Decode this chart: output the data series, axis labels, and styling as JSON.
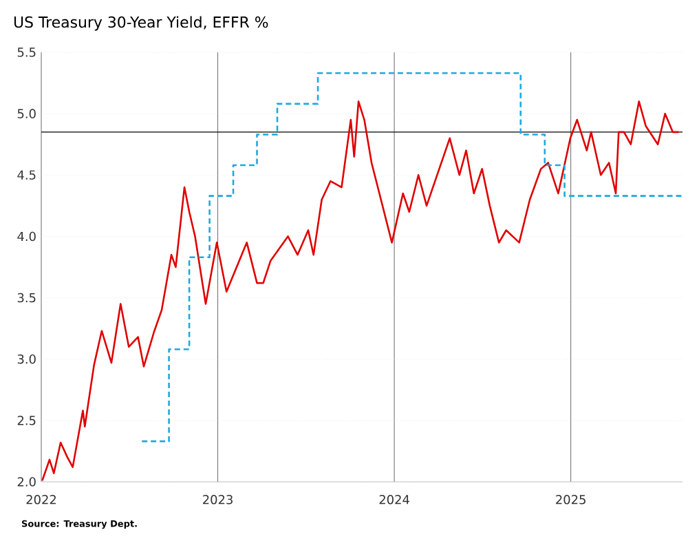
{
  "chart_data": {
    "type": "line",
    "title": "US Treasury 30-Year Yield, EFFR %",
    "annotations": [
      "Source: Treasury Dept."
    ],
    "xlim": [
      "2022-01-01",
      "2025-08-20"
    ],
    "xticks": [
      "2022",
      "2023",
      "2024",
      "2025"
    ],
    "ylim": [
      2.0,
      5.5
    ],
    "yticks": [
      {
        "value": 2.0,
        "label": "2.0"
      },
      {
        "value": 2.5,
        "label": "2.5"
      },
      {
        "value": 3.0,
        "label": "3.0"
      },
      {
        "value": 3.5,
        "label": "3.5"
      },
      {
        "value": 4.0,
        "label": "4.0"
      },
      {
        "value": 4.5,
        "label": "4.5"
      },
      {
        "value": 5.0,
        "label": "5.0"
      },
      {
        "value": 5.5,
        "label": "5.5"
      }
    ],
    "grid": true,
    "marker": "none",
    "ref_lines": [
      {
        "axis": "y",
        "value": 4.85,
        "color": "#000000"
      }
    ],
    "series": [
      {
        "color": "#e00000",
        "line_style": "solid",
        "x": [
          "2022-01-03",
          "2022-01-18",
          "2022-01-27",
          "2022-02-10",
          "2022-02-24",
          "2022-03-07",
          "2022-03-28",
          "2022-04-01",
          "2022-04-20",
          "2022-05-06",
          "2022-05-26",
          "2022-06-14",
          "2022-07-01",
          "2022-07-20",
          "2022-08-01",
          "2022-08-22",
          "2022-09-07",
          "2022-09-27",
          "2022-10-06",
          "2022-10-24",
          "2022-11-03",
          "2022-11-15",
          "2022-12-07",
          "2022-12-30",
          "2023-01-19",
          "2023-02-09",
          "2023-03-02",
          "2023-03-23",
          "2023-04-05",
          "2023-04-20",
          "2023-05-26",
          "2023-06-15",
          "2023-07-07",
          "2023-07-18",
          "2023-08-04",
          "2023-08-22",
          "2023-09-14",
          "2023-10-03",
          "2023-10-10",
          "2023-10-19",
          "2023-10-31",
          "2023-11-15",
          "2023-12-27",
          "2024-01-19",
          "2024-02-01",
          "2024-02-20",
          "2024-03-08",
          "2024-04-25",
          "2024-05-15",
          "2024-05-29",
          "2024-06-14",
          "2024-07-01",
          "2024-07-17",
          "2024-08-05",
          "2024-08-20",
          "2024-09-16",
          "2024-10-08",
          "2024-10-31",
          "2024-11-15",
          "2024-12-06",
          "2024-12-31",
          "2025-01-14",
          "2025-02-03",
          "2025-02-12",
          "2025-03-04",
          "2025-03-21",
          "2025-04-04",
          "2025-04-10",
          "2025-04-21",
          "2025-05-05",
          "2025-05-22",
          "2025-06-05",
          "2025-06-30",
          "2025-07-15",
          "2025-07-31",
          "2025-08-12"
        ],
        "values": [
          2.01,
          2.18,
          2.07,
          2.32,
          2.2,
          2.12,
          2.58,
          2.45,
          2.95,
          3.23,
          2.97,
          3.45,
          3.1,
          3.18,
          2.94,
          3.22,
          3.4,
          3.85,
          3.75,
          4.4,
          4.2,
          4.0,
          3.45,
          3.95,
          3.55,
          3.75,
          3.95,
          3.62,
          3.62,
          3.8,
          4.0,
          3.85,
          4.05,
          3.85,
          4.3,
          4.45,
          4.4,
          4.95,
          4.65,
          5.1,
          4.95,
          4.6,
          3.95,
          4.35,
          4.2,
          4.5,
          4.25,
          4.8,
          4.5,
          4.7,
          4.35,
          4.55,
          4.25,
          3.95,
          4.05,
          3.95,
          4.3,
          4.55,
          4.6,
          4.35,
          4.8,
          4.95,
          4.7,
          4.85,
          4.5,
          4.6,
          4.35,
          4.85,
          4.85,
          4.75,
          5.1,
          4.9,
          4.75,
          5.0,
          4.85,
          4.85
        ]
      },
      {
        "type": "step",
        "color": "#1ea9dc",
        "line_style": "dashed",
        "x": [
          "2022-07-28",
          "2022-09-22",
          "2022-11-03",
          "2022-12-15",
          "2023-02-02",
          "2023-03-23",
          "2023-05-04",
          "2023-07-27",
          "2024-09-19",
          "2024-11-08",
          "2024-12-19",
          "2025-08-20"
        ],
        "values": [
          2.33,
          3.08,
          3.83,
          4.33,
          4.58,
          4.83,
          5.08,
          5.33,
          4.83,
          4.58,
          4.33,
          4.33
        ]
      }
    ]
  }
}
